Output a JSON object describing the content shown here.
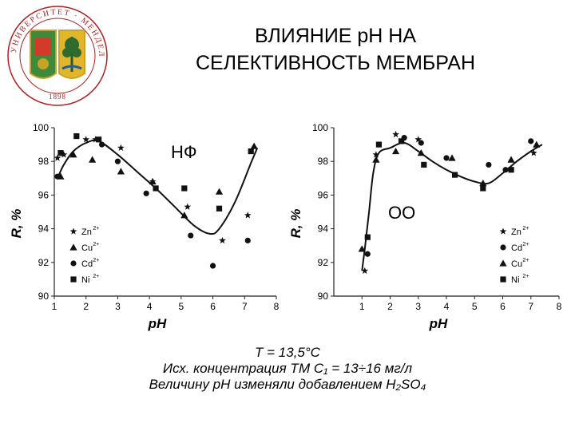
{
  "title": {
    "line1": "ВЛИЯНИЕ pH НА",
    "line2": "СЕЛЕКТИВНОСТЬ МЕМБРАН"
  },
  "logo": {
    "ring_text": "УНИВЕРСИТЕТ · МЕНДЕЛЕЕВА",
    "year": "1898"
  },
  "conditions": {
    "temperature": "T = 13,5°C",
    "concentration": "Исх. концентрация ТМ C₁ = 13÷16 мг/л",
    "ph_adjust": "Величину pH изменяли добавлением H₂SO₄"
  },
  "chart_data": [
    {
      "type": "scatter",
      "label": "НФ",
      "xlabel": "pH",
      "ylabel": "R, %",
      "xlim": [
        1,
        8
      ],
      "ylim": [
        90,
        100
      ],
      "xticks": [
        1,
        2,
        3,
        4,
        5,
        6,
        7,
        8
      ],
      "yticks": [
        90,
        92,
        94,
        96,
        98,
        100
      ],
      "legend_position": "left",
      "series": [
        {
          "name": "Zn2+",
          "marker": "star",
          "x": [
            1.1,
            1.3,
            2.0,
            2.3,
            3.1,
            4.1,
            5.2,
            6.3,
            7.1
          ],
          "y": [
            98.2,
            98.4,
            99.3,
            99.3,
            98.8,
            96.8,
            95.3,
            93.3,
            94.8
          ]
        },
        {
          "name": "Cu2+",
          "marker": "triangle",
          "x": [
            1.2,
            1.6,
            2.2,
            3.1,
            4.1,
            5.1,
            6.2,
            7.3
          ],
          "y": [
            97.1,
            98.4,
            98.1,
            97.4,
            96.8,
            94.8,
            96.2,
            98.9
          ]
        },
        {
          "name": "Cd2+",
          "marker": "circle",
          "x": [
            1.1,
            2.5,
            3.0,
            3.9,
            5.3,
            6.0,
            7.1
          ],
          "y": [
            97.1,
            99.0,
            98.0,
            96.1,
            93.6,
            91.8,
            93.3
          ]
        },
        {
          "name": "Ni2+",
          "marker": "square",
          "x": [
            1.2,
            1.7,
            2.4,
            4.2,
            5.1,
            6.2,
            7.2
          ],
          "y": [
            98.5,
            99.5,
            99.3,
            96.4,
            96.4,
            95.2,
            98.6
          ]
        }
      ],
      "trend": {
        "x": [
          1.1,
          1.3,
          1.6,
          2.0,
          2.4,
          3.0,
          3.6,
          4.2,
          4.8,
          5.4,
          5.9,
          6.2,
          6.7,
          7.2,
          7.4
        ],
        "y": [
          97.0,
          97.8,
          98.6,
          99.1,
          99.2,
          98.4,
          97.4,
          96.4,
          95.3,
          94.2,
          93.7,
          94.0,
          95.6,
          97.9,
          98.8
        ]
      }
    },
    {
      "type": "scatter",
      "label": "ОО",
      "xlabel": "pH",
      "ylabel": "R, %",
      "xlim": [
        0,
        8
      ],
      "ylim": [
        90,
        100
      ],
      "xticks": [
        1,
        2,
        3,
        4,
        5,
        6,
        7,
        8
      ],
      "yticks": [
        90,
        92,
        94,
        96,
        98,
        100
      ],
      "legend_position": "right",
      "series": [
        {
          "name": "Zn2+",
          "marker": "star",
          "x": [
            1.1,
            1.5,
            2.2,
            3.0,
            7.1
          ],
          "y": [
            91.5,
            98.4,
            99.6,
            99.3,
            98.5
          ]
        },
        {
          "name": "Cd2+",
          "marker": "circle",
          "x": [
            1.2,
            2.5,
            3.1,
            4.0,
            5.5,
            6.1,
            7.0
          ],
          "y": [
            92.5,
            99.4,
            99.1,
            98.2,
            97.8,
            97.5,
            99.2
          ]
        },
        {
          "name": "Cu2+",
          "marker": "triangle",
          "x": [
            1.0,
            1.5,
            2.2,
            3.1,
            4.2,
            5.3,
            6.3,
            7.2
          ],
          "y": [
            92.8,
            98.1,
            98.6,
            98.5,
            98.2,
            96.7,
            98.1,
            99.0
          ]
        },
        {
          "name": "Ni2+",
          "marker": "square",
          "x": [
            1.2,
            1.6,
            2.4,
            3.2,
            4.3,
            5.3,
            6.3
          ],
          "y": [
            93.5,
            99.0,
            99.2,
            97.8,
            97.2,
            96.4,
            97.5
          ]
        }
      ],
      "trend": {
        "x": [
          1.0,
          1.1,
          1.25,
          1.4,
          1.6,
          2.0,
          2.5,
          3.0,
          3.5,
          4.0,
          4.5,
          5.0,
          5.5,
          6.0,
          6.5,
          7.0,
          7.4
        ],
        "y": [
          91.5,
          92.8,
          95.0,
          97.3,
          98.5,
          98.8,
          99.1,
          98.6,
          98.0,
          97.5,
          97.1,
          96.8,
          96.7,
          97.3,
          98.0,
          98.6,
          99.0
        ]
      }
    }
  ]
}
